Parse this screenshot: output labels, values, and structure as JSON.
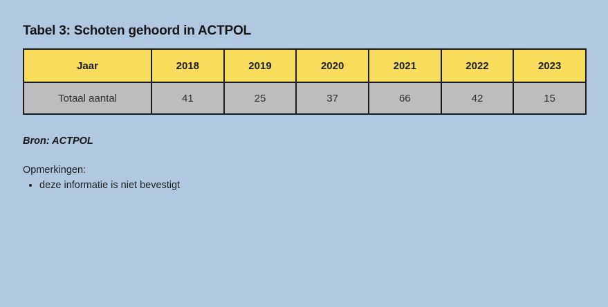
{
  "page": {
    "title": "Tabel 3: Schoten gehoord in ACTPOL",
    "source_label": "Bron: ACTPOL",
    "notes_heading": "Opmerkingen:",
    "notes": [
      "deze informatie is niet bevestigt"
    ]
  },
  "table": {
    "header": [
      "Jaar",
      "2018",
      "2019",
      "2020",
      "2021",
      "2022",
      "2023"
    ],
    "rows": [
      {
        "label": "Totaal aantal",
        "values": [
          "41",
          "25",
          "37",
          "66",
          "42",
          "15"
        ]
      }
    ]
  },
  "chart_data": {
    "type": "table",
    "title": "Tabel 3: Schoten gehoord in ACTPOL",
    "categories": [
      "2018",
      "2019",
      "2020",
      "2021",
      "2022",
      "2023"
    ],
    "series": [
      {
        "name": "Totaal aantal",
        "values": [
          41,
          25,
          37,
          66,
          42,
          15
        ]
      }
    ],
    "source": "Bron: ACTPOL"
  },
  "colors": {
    "background": "#b0c8e0",
    "header_fill": "#f8dc5c",
    "row_fill": "#bdbdbd",
    "border": "#1a1a1a",
    "text": "#1a1a1a"
  }
}
